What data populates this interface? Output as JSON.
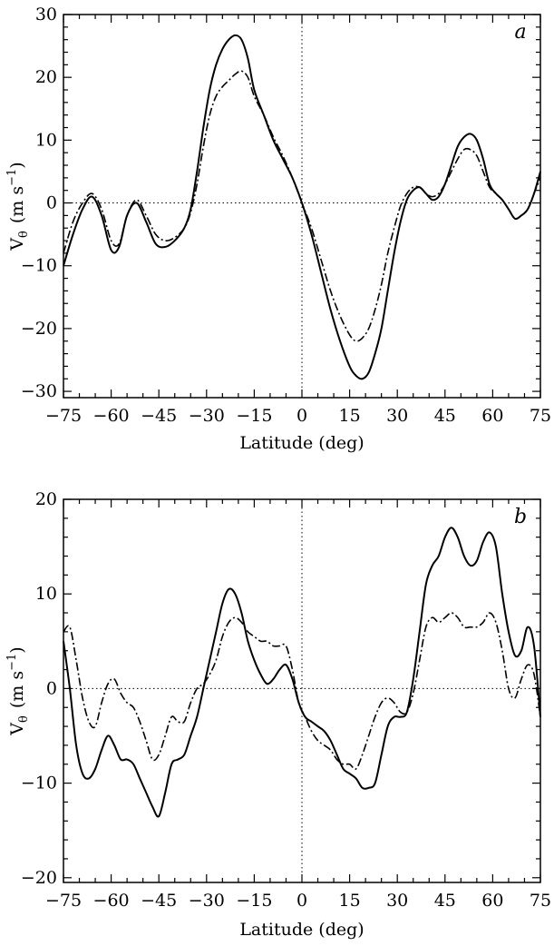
{
  "chart_data": [
    {
      "type": "line",
      "panel_label": "a",
      "xlabel": "Latitude (deg)",
      "ylabel_main": "V",
      "ylabel_sub": "θ",
      "ylabel_units": "(m s",
      "ylabel_exp": "−1",
      "ylabel_close": ")",
      "xlim": [
        -75,
        75
      ],
      "ylim": [
        -31,
        30
      ],
      "xticks": [
        -75,
        -60,
        -45,
        -30,
        -15,
        0,
        15,
        30,
        45,
        60,
        75
      ],
      "xtick_labels": [
        "−75",
        "−60",
        "−45",
        "−30",
        "−15",
        "0",
        "15",
        "30",
        "45",
        "60",
        "75"
      ],
      "yticks": [
        -30,
        -20,
        -10,
        0,
        10,
        20,
        30
      ],
      "ytick_labels": [
        "−30",
        "−20",
        "−10",
        "0",
        "10",
        "20",
        "30"
      ],
      "reference_lines": {
        "x": 0,
        "y": 0
      },
      "series": [
        {
          "style": "solid",
          "x": [
            -75,
            -72,
            -69,
            -66,
            -63,
            -60,
            -57.5,
            -55,
            -52,
            -49,
            -46,
            -43,
            -40,
            -37,
            -35,
            -33,
            -31,
            -29,
            -27,
            -25,
            -23,
            -21,
            -19,
            -17,
            -15,
            -12,
            -9,
            -6,
            -3,
            0,
            3,
            6,
            9,
            12,
            15,
            17,
            19,
            21,
            23,
            25,
            27,
            29,
            31,
            33,
            35,
            37,
            39,
            41,
            43,
            45,
            47,
            49,
            51,
            53,
            55,
            57,
            59,
            61,
            63,
            65,
            67,
            69,
            71,
            73,
            75
          ],
          "y": [
            -10,
            -5,
            -1,
            1,
            -2,
            -7.5,
            -7,
            -2,
            0,
            -3,
            -6.5,
            -7,
            -6,
            -4,
            -1,
            5,
            12,
            18,
            22,
            24.5,
            26,
            26.7,
            26,
            23,
            18,
            14,
            10,
            7,
            4,
            0,
            -5,
            -11,
            -17,
            -22,
            -26,
            -27.5,
            -28,
            -27,
            -24,
            -20,
            -14,
            -8,
            -3,
            0.5,
            2,
            2.5,
            1.5,
            0.5,
            1,
            3,
            6,
            9,
            10.5,
            11,
            10,
            7,
            3,
            1.5,
            0.5,
            -1,
            -2.5,
            -2,
            -1,
            1.5,
            5
          ]
        },
        {
          "style": "dashdot",
          "x": [
            -75,
            -72,
            -69,
            -66,
            -63,
            -60,
            -57.5,
            -55,
            -52,
            -49,
            -46,
            -43,
            -40,
            -37,
            -35,
            -33,
            -31,
            -29,
            -27,
            -25,
            -23,
            -21,
            -19,
            -17,
            -15,
            -12,
            -9,
            -6,
            -3,
            0,
            3,
            6,
            9,
            12,
            15,
            17,
            19,
            21,
            23,
            25,
            27,
            29,
            31,
            33,
            35,
            37,
            39,
            41,
            43,
            45,
            47,
            49,
            51,
            53,
            55,
            57,
            59,
            61,
            63,
            65,
            67,
            69,
            71,
            73,
            75
          ],
          "y": [
            -8,
            -3,
            0,
            1.5,
            -1,
            -6,
            -6.5,
            -2,
            0.5,
            -2,
            -5,
            -6,
            -5.5,
            -4,
            -1.5,
            3,
            9,
            14,
            17,
            18.5,
            19.5,
            20.5,
            21,
            20,
            17,
            14,
            10.5,
            7.5,
            4,
            0,
            -4,
            -9,
            -14,
            -18,
            -21,
            -22,
            -21.5,
            -20,
            -17,
            -13,
            -8,
            -4,
            -0.5,
            1.5,
            2.5,
            2.5,
            1.5,
            1,
            1.5,
            3,
            5,
            7,
            8.5,
            8.5,
            7.5,
            5,
            2.5,
            1.5,
            0.5,
            -1,
            -2.5,
            -2,
            -1,
            1.5,
            4
          ]
        }
      ]
    },
    {
      "type": "line",
      "panel_label": "b",
      "xlabel": "Latitude (deg)",
      "ylabel_main": "V",
      "ylabel_sub": "θ",
      "ylabel_units": "(m s",
      "ylabel_exp": "−1",
      "ylabel_close": ")",
      "xlim": [
        -75,
        75
      ],
      "ylim": [
        -20.5,
        20
      ],
      "xticks": [
        -75,
        -60,
        -45,
        -30,
        -15,
        0,
        15,
        30,
        45,
        60,
        75
      ],
      "xtick_labels": [
        "−75",
        "−60",
        "−45",
        "−30",
        "−15",
        "0",
        "15",
        "30",
        "45",
        "60",
        "75"
      ],
      "yticks": [
        -20,
        -10,
        0,
        10,
        20
      ],
      "ytick_labels": [
        "−20",
        "−10",
        "0",
        "10",
        "20"
      ],
      "reference_lines": {
        "x": 0,
        "y": 0
      },
      "series": [
        {
          "style": "solid",
          "x": [
            -75,
            -73,
            -71,
            -69,
            -67,
            -65,
            -63,
            -61,
            -59,
            -57,
            -55,
            -53,
            -51,
            -49,
            -47,
            -45,
            -43,
            -41,
            -39,
            -37,
            -35,
            -33,
            -31,
            -29,
            -27,
            -25,
            -23,
            -21,
            -19,
            -17,
            -15,
            -13,
            -11,
            -9,
            -7,
            -5,
            -3,
            -1,
            1,
            3,
            5,
            7,
            9,
            11,
            13,
            15,
            17,
            19,
            21,
            23,
            25,
            27,
            29,
            31,
            33,
            35,
            37,
            39,
            41,
            43,
            45,
            47,
            49,
            51,
            53,
            55,
            57,
            59,
            61,
            63,
            65,
            67,
            69,
            71,
            73,
            75
          ],
          "y": [
            5,
            0,
            -6,
            -9,
            -9.5,
            -8.5,
            -6.5,
            -5,
            -6,
            -7.5,
            -7.5,
            -8,
            -9.5,
            -11,
            -12.5,
            -13.5,
            -11,
            -8,
            -7.5,
            -7,
            -5,
            -3,
            0,
            3,
            6,
            9,
            10.5,
            10,
            8,
            5,
            3,
            1.5,
            0.5,
            1,
            2,
            2.5,
            1,
            -1.5,
            -3,
            -3.5,
            -4,
            -4.5,
            -5.5,
            -7,
            -8.5,
            -9,
            -9.5,
            -10.5,
            -10.5,
            -10,
            -7,
            -4,
            -3,
            -3,
            -2.5,
            1,
            6,
            11,
            13,
            14,
            16,
            17,
            16,
            14,
            13,
            13.5,
            15.5,
            16.5,
            15,
            10,
            6,
            3.5,
            4,
            6.5,
            4.5,
            -3
          ]
        },
        {
          "style": "dashdot",
          "x": [
            -75,
            -73,
            -71,
            -69,
            -67,
            -65,
            -63,
            -61,
            -59,
            -57,
            -55,
            -53,
            -51,
            -49,
            -47,
            -45,
            -43,
            -41,
            -39,
            -37,
            -35,
            -33,
            -31,
            -29,
            -27,
            -25,
            -23,
            -21,
            -19,
            -17,
            -15,
            -13,
            -11,
            -9,
            -7,
            -5,
            -3,
            -1,
            1,
            3,
            5,
            7,
            9,
            11,
            13,
            15,
            17,
            19,
            21,
            23,
            25,
            27,
            29,
            31,
            33,
            35,
            37,
            39,
            41,
            43,
            45,
            47,
            49,
            51,
            53,
            55,
            57,
            59,
            61,
            63,
            65,
            67,
            69,
            71,
            73,
            75
          ],
          "y": [
            6,
            6.5,
            3,
            -1,
            -3.5,
            -4,
            -1.5,
            0.5,
            1,
            -0.5,
            -1.5,
            -2,
            -3.5,
            -5.5,
            -7.5,
            -7,
            -5,
            -3,
            -3.5,
            -3.5,
            -1.5,
            0,
            0.5,
            1.5,
            3,
            5.5,
            7,
            7.5,
            7,
            6,
            5.5,
            5,
            5,
            4.5,
            4.5,
            4.5,
            2,
            -1.5,
            -3,
            -4.5,
            -5.5,
            -6,
            -6.5,
            -7.5,
            -8,
            -8,
            -8.5,
            -7,
            -5,
            -3,
            -1.5,
            -1,
            -1.5,
            -2.5,
            -2.5,
            -0.5,
            3,
            6.5,
            7.5,
            7,
            7.5,
            8,
            7.5,
            6.5,
            6.5,
            6.5,
            7,
            8,
            7,
            4,
            0,
            -1,
            1,
            2.5,
            1.5,
            -3
          ]
        }
      ]
    }
  ]
}
